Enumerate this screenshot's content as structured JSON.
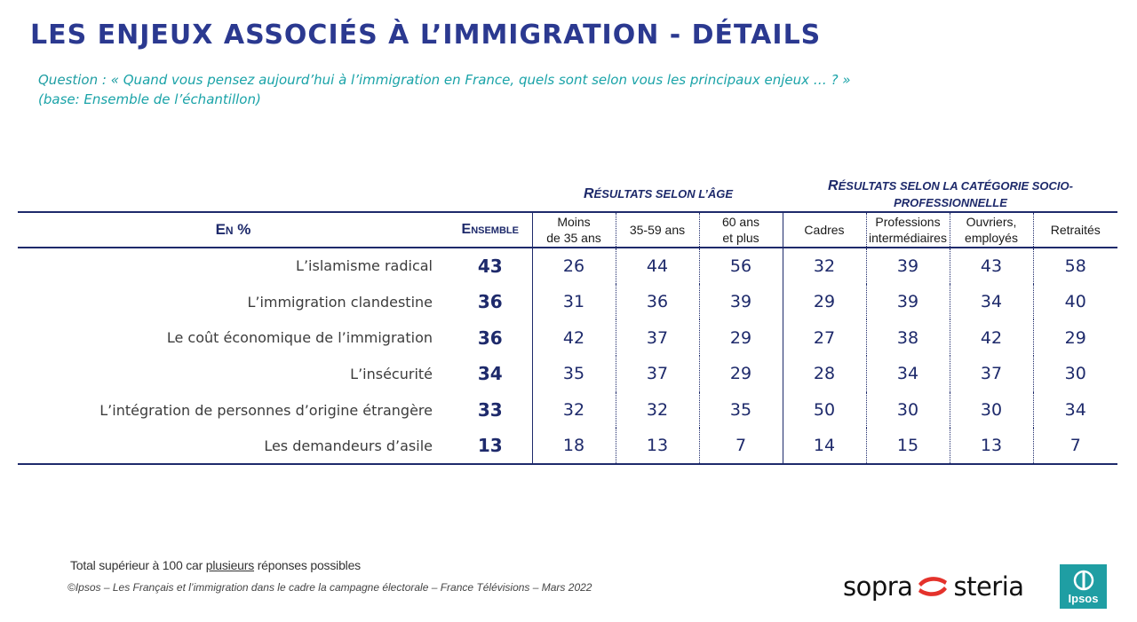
{
  "title": "LES ENJEUX ASSOCIÉS À L’IMMIGRATION - DÉTAILS",
  "question": {
    "label": "Question :",
    "open_quote": "«",
    "text": "Quand vous pensez aujourd’hui à l’immigration en France, quels sont selon vous les principaux enjeux … ? »",
    "base": "(base: Ensemble de l’échantillon)"
  },
  "groups": {
    "age": {
      "first": "R",
      "rest": "ésultats selon l’âge"
    },
    "csp": {
      "first": "R",
      "rest": "ésultats selon la catégorie socio-",
      "line2": "professionnelle"
    }
  },
  "table": {
    "label_header": "En %",
    "ensemble_header": "Ensemble",
    "columns": [
      {
        "line1": "Moins",
        "line2": "de 35 ans"
      },
      {
        "line1": "35-59 ans",
        "line2": ""
      },
      {
        "line1": "60 ans",
        "line2": "et plus"
      },
      {
        "line1": "Cadres",
        "line2": ""
      },
      {
        "line1": "Professions",
        "line2": "intermédiaires"
      },
      {
        "line1": "Ouvriers,",
        "line2": "employés"
      },
      {
        "line1": "Retraités",
        "line2": ""
      }
    ],
    "rows": [
      {
        "label": "L’islamisme radical",
        "ensemble": "43",
        "values": [
          "26",
          "44",
          "56",
          "32",
          "39",
          "43",
          "58"
        ]
      },
      {
        "label": "L’immigration clandestine",
        "ensemble": "36",
        "values": [
          "31",
          "36",
          "39",
          "29",
          "39",
          "34",
          "40"
        ]
      },
      {
        "label": "Le coût économique de l’immigration",
        "ensemble": "36",
        "values": [
          "42",
          "37",
          "29",
          "27",
          "38",
          "42",
          "29"
        ]
      },
      {
        "label": "L’insécurité",
        "ensemble": "34",
        "values": [
          "35",
          "37",
          "29",
          "28",
          "34",
          "37",
          "30"
        ]
      },
      {
        "label": "L’intégration de personnes d’origine étrangère",
        "ensemble": "33",
        "values": [
          "32",
          "32",
          "35",
          "50",
          "30",
          "30",
          "34"
        ]
      },
      {
        "label": "Les demandeurs d’asile",
        "ensemble": "13",
        "values": [
          "18",
          "13",
          "7",
          "14",
          "15",
          "13",
          "7"
        ]
      }
    ]
  },
  "footer": {
    "note_pre": "Total supérieur à 100 car ",
    "note_underlined": "plusieurs",
    "note_post": " réponses possibles",
    "source": "©Ipsos – Les Français et l’immigration dans le cadre la campagne électorale  – France Télévisions – Mars 2022"
  },
  "logos": {
    "sopra": {
      "left": "sopra",
      "right": "steria",
      "accent": "#e4322b"
    },
    "ipsos": {
      "word": "Ipsos",
      "color": "#1f9ea3"
    }
  }
}
